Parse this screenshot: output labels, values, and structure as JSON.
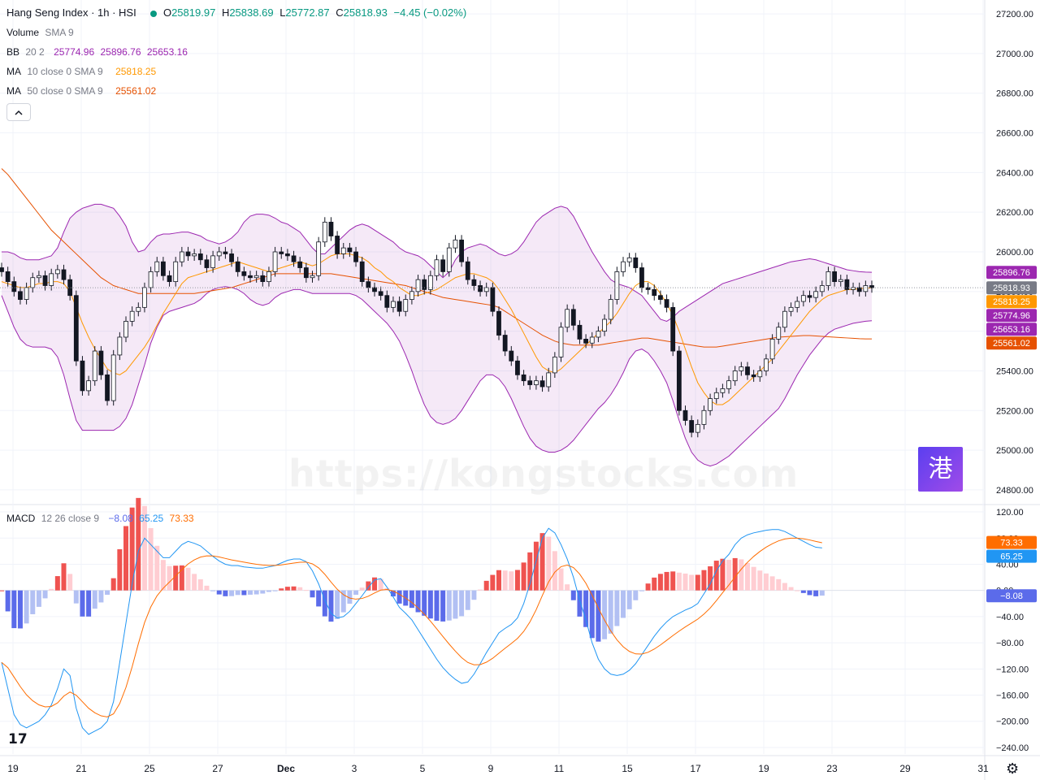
{
  "header": {
    "symbol": "Hang Seng Index · 1h · HSI",
    "o_label": "O",
    "o": "25819.97",
    "h_label": "H",
    "h": "25838.69",
    "l_label": "L",
    "l": "25772.87",
    "c_label": "C",
    "c": "25818.93",
    "change": "−4.45 (−0.02%)"
  },
  "indicators": {
    "volume": "Volume",
    "volume_params": "SMA 9",
    "bb": "BB",
    "bb_params": "20 2",
    "bb_mid": "25774.96",
    "bb_upper": "25896.76",
    "bb_lower": "25653.16",
    "ma10": "MA",
    "ma10_params": "10 close 0 SMA 9",
    "ma10_value": "25818.25",
    "ma50": "MA",
    "ma50_params": "50 close 0 SMA 9",
    "ma50_value": "25561.02",
    "macd": "MACD",
    "macd_params": "12 26 close 9",
    "macd_hist": "−8.08",
    "macd_line": "65.25",
    "macd_signal": "73.33"
  },
  "collapse_icon": "chevron-up-icon",
  "watermark": "https://kongstocks.com",
  "logo_text": "港",
  "tv_logo": "17",
  "colors": {
    "up": "#ffffff",
    "down": "#131722",
    "bb": "#9c27b0",
    "bb_fill": "rgba(156,39,176,0.1)",
    "ma10": "#ff9800",
    "ma50": "#e65100",
    "macd": "#2196f3",
    "signal": "#ff6d00",
    "hist_pos_strong": "#ef5350",
    "hist_pos_weak": "#ffcdd2",
    "hist_neg_strong": "#5b6bea",
    "hist_neg_weak": "#b2c0f3"
  },
  "chart_data": {
    "type": "candlestick",
    "price_axis": {
      "ticks": [
        27200,
        27000,
        26800,
        26600,
        26400,
        26200,
        26000,
        25800,
        25600,
        25400,
        25200,
        25000,
        24800
      ],
      "labels": [
        "27200.00",
        "27000.00",
        "26800.00",
        "26600.00",
        "26400.00",
        "26200.00",
        "26000.00",
        "25800.00",
        "25600.00",
        "25400.00",
        "25200.00",
        "25000.00",
        "24800.00"
      ],
      "ylim": [
        24730,
        27270
      ]
    },
    "macd_axis": {
      "ticks": [
        120,
        80,
        40,
        0,
        -40,
        -80,
        -120,
        -160,
        -200,
        -240
      ],
      "labels": [
        "120.00",
        "80.00",
        "40.00",
        "0.00",
        "−40.00",
        "−80.00",
        "−120.00",
        "−160.00",
        "−200.00",
        "−240.00"
      ],
      "ylim": [
        -250,
        130
      ]
    },
    "x_axis_labels": [
      "19",
      "21",
      "25",
      "27",
      "Dec",
      "3",
      "5",
      "9",
      "11",
      "15",
      "17",
      "19",
      "23",
      "29",
      "31"
    ],
    "price_badges": [
      {
        "text": "25896.76",
        "value": 25896.76,
        "color": "#9c27b0"
      },
      {
        "text": "25818.93",
        "value": 25818.93,
        "color": "#787b86"
      },
      {
        "text": "25818.25",
        "value": 25818.25,
        "color": "#ff9800"
      },
      {
        "text": "25774.96",
        "value": 25774.96,
        "color": "#9c27b0"
      },
      {
        "text": "25653.16",
        "value": 25653.16,
        "color": "#9c27b0"
      },
      {
        "text": "25561.02",
        "value": 25561.02,
        "color": "#e65100"
      }
    ],
    "macd_badges": [
      {
        "text": "73.33",
        "value": 73.33,
        "color": "#ff6d00"
      },
      {
        "text": "65.25",
        "value": 65.25,
        "color": "#2196f3"
      },
      {
        "text": "−8.08",
        "value": -8.08,
        "color": "#5b6bea"
      }
    ],
    "close": [
      25900,
      25850,
      25800,
      25760,
      25820,
      25870,
      25880,
      25830,
      25890,
      25910,
      25860,
      25780,
      25450,
      25300,
      25350,
      25500,
      25380,
      25250,
      25480,
      25570,
      25650,
      25700,
      25720,
      25820,
      25900,
      25950,
      25880,
      25850,
      25950,
      26000,
      25980,
      25990,
      25960,
      25920,
      25980,
      26000,
      25990,
      25950,
      25900,
      25880,
      25870,
      25880,
      25850,
      25900,
      26000,
      25990,
      25980,
      25950,
      25920,
      25870,
      25880,
      26050,
      26150,
      26080,
      25990,
      26020,
      26000,
      25950,
      25850,
      25820,
      25800,
      25780,
      25720,
      25750,
      25700,
      25760,
      25800,
      25860,
      25810,
      25880,
      25960,
      25900,
      26020,
      26060,
      25950,
      25860,
      25830,
      25800,
      25820,
      25700,
      25580,
      25500,
      25450,
      25380,
      25350,
      25330,
      25350,
      25320,
      25390,
      25470,
      25620,
      25710,
      25630,
      25560,
      25540,
      25570,
      25600,
      25660,
      25760,
      25900,
      25950,
      25970,
      25920,
      25820,
      25810,
      25780,
      25760,
      25720,
      25500,
      25200,
      25150,
      25090,
      25130,
      25200,
      25260,
      25290,
      25310,
      25350,
      25400,
      25420,
      25380,
      25370,
      25400,
      25460,
      25560,
      25620,
      25700,
      25720,
      25750,
      25780,
      25770,
      25800,
      25830,
      25900,
      25850,
      25860,
      25810,
      25820,
      25800,
      25830,
      25819
    ],
    "upper": [
      26000,
      26000,
      25990,
      25970,
      25960,
      25960,
      25960,
      25970,
      25980,
      26020,
      26100,
      26170,
      26200,
      26220,
      26230,
      26240,
      26240,
      26230,
      26220,
      26180,
      26130,
      26050,
      26000,
      26010,
      26050,
      26080,
      26090,
      26090,
      26095,
      26100,
      26100,
      26090,
      26080,
      26060,
      26050,
      26040,
      26050,
      26070,
      26100,
      26150,
      26180,
      26190,
      26190,
      26185,
      26170,
      26150,
      26140,
      26120,
      26100,
      26060,
      26020,
      25990,
      25990,
      26020,
      26050,
      26080,
      26110,
      26130,
      26140,
      26130,
      26110,
      26090,
      26070,
      26050,
      26020,
      26000,
      25990,
      25980,
      25960,
      25930,
      25900,
      25870,
      25900,
      25960,
      26000,
      26020,
      26030,
      26040,
      26030,
      26010,
      25990,
      25980,
      25990,
      26010,
      26050,
      26100,
      26150,
      26180,
      26200,
      26220,
      26230,
      26220,
      26180,
      26120,
      26060,
      26000,
      25950,
      25900,
      25860,
      25840,
      25830,
      25820,
      25800,
      25780,
      25740,
      25700,
      25660,
      25650,
      25670,
      25700,
      25720,
      25740,
      25760,
      25780,
      25800,
      25820,
      25840,
      25850,
      25860,
      25870,
      25880,
      25890,
      25900,
      25910,
      25920,
      25930,
      25940,
      25950,
      25955,
      25960,
      25965,
      25960,
      25950,
      25940,
      25930,
      25920,
      25910,
      25905,
      25900,
      25898,
      25897
    ],
    "lower": [
      25780,
      25700,
      25620,
      25560,
      25530,
      25520,
      25520,
      25520,
      25510,
      25470,
      25380,
      25260,
      25150,
      25100,
      25100,
      25100,
      25100,
      25100,
      25100,
      25120,
      25160,
      25230,
      25330,
      25430,
      25540,
      25620,
      25680,
      25700,
      25710,
      25720,
      25730,
      25740,
      25760,
      25790,
      25810,
      25820,
      25825,
      25820,
      25810,
      25790,
      25760,
      25740,
      25730,
      25740,
      25770,
      25790,
      25800,
      25810,
      25810,
      25800,
      25790,
      25790,
      25790,
      25790,
      25790,
      25790,
      25790,
      25780,
      25760,
      25730,
      25700,
      25670,
      25640,
      25600,
      25550,
      25480,
      25400,
      25310,
      25230,
      25170,
      25140,
      25130,
      25140,
      25160,
      25200,
      25250,
      25300,
      25350,
      25380,
      25380,
      25360,
      25320,
      25260,
      25190,
      25120,
      25060,
      25020,
      25000,
      24990,
      24990,
      25000,
      25020,
      25050,
      25090,
      25130,
      25170,
      25210,
      25240,
      25280,
      25330,
      25390,
      25460,
      25500,
      25510,
      25490,
      25450,
      25400,
      25340,
      25250,
      25150,
      25060,
      24990,
      24950,
      24930,
      24920,
      24930,
      24950,
      24970,
      25000,
      25030,
      25060,
      25090,
      25120,
      25150,
      25180,
      25210,
      25260,
      25320,
      25380,
      25430,
      25480,
      25520,
      25560,
      25590,
      25610,
      25620,
      25630,
      25640,
      25645,
      25650,
      25653
    ],
    "ma10": [
      25850,
      25840,
      25830,
      25820,
      25820,
      25830,
      25840,
      25840,
      25850,
      25850,
      25840,
      25800,
      25720,
      25640,
      25570,
      25510,
      25460,
      25410,
      25390,
      25380,
      25400,
      25440,
      25480,
      25520,
      25570,
      25630,
      25690,
      25740,
      25790,
      25840,
      25870,
      25880,
      25890,
      25900,
      25910,
      25920,
      25930,
      25940,
      25950,
      25940,
      25930,
      25920,
      25910,
      25900,
      25910,
      25920,
      25930,
      25940,
      25950,
      25940,
      25930,
      25940,
      25960,
      25980,
      25990,
      25990,
      25990,
      25980,
      25970,
      25950,
      25920,
      25900,
      25870,
      25850,
      25820,
      25800,
      25780,
      25780,
      25790,
      25800,
      25810,
      25830,
      25850,
      25870,
      25880,
      25890,
      25890,
      25880,
      25870,
      25850,
      25810,
      25760,
      25710,
      25650,
      25590,
      25530,
      25470,
      25420,
      25400,
      25390,
      25410,
      25440,
      25470,
      25500,
      25530,
      25560,
      25590,
      25620,
      25650,
      25690,
      25740,
      25790,
      25830,
      25850,
      25850,
      25830,
      25790,
      25740,
      25680,
      25600,
      25510,
      25420,
      25340,
      25290,
      25250,
      25230,
      25230,
      25250,
      25280,
      25310,
      25340,
      25370,
      25400,
      25430,
      25460,
      25500,
      25540,
      25580,
      25620,
      25660,
      25700,
      25730,
      25760,
      25780,
      25790,
      25800,
      25810,
      25810,
      25815,
      25817,
      25818
    ],
    "ma50": [
      26420,
      26390,
      26350,
      26310,
      26270,
      26230,
      26190,
      26150,
      26110,
      26080,
      26050,
      26020,
      25990,
      25960,
      25930,
      25900,
      25870,
      25850,
      25830,
      25820,
      25810,
      25800,
      25790,
      25790,
      25790,
      25790,
      25790,
      25790,
      25790,
      25790,
      25790,
      25790,
      25795,
      25800,
      25805,
      25810,
      25815,
      25820,
      25830,
      25840,
      25850,
      25860,
      25870,
      25880,
      25890,
      25890,
      25890,
      25890,
      25890,
      25890,
      25890,
      25890,
      25890,
      25890,
      25885,
      25880,
      25875,
      25870,
      25865,
      25860,
      25855,
      25850,
      25845,
      25840,
      25835,
      25830,
      25820,
      25810,
      25800,
      25790,
      25780,
      25770,
      25765,
      25760,
      25755,
      25750,
      25745,
      25740,
      25735,
      25730,
      25720,
      25700,
      25680,
      25660,
      25640,
      25620,
      25600,
      25580,
      25565,
      25550,
      25540,
      25535,
      25530,
      25530,
      25530,
      25530,
      25530,
      25535,
      25540,
      25545,
      25550,
      25555,
      25560,
      25565,
      25565,
      25560,
      25555,
      25550,
      25545,
      25540,
      25535,
      25530,
      25525,
      25520,
      25520,
      25520,
      25525,
      25530,
      25535,
      25540,
      25545,
      25550,
      25555,
      25560,
      25565,
      25570,
      25572,
      25574,
      25576,
      25578,
      25578,
      25576,
      25574,
      25572,
      25570,
      25568,
      25566,
      25564,
      25562,
      25561,
      25561
    ],
    "macd_line": [
      -110,
      -150,
      -190,
      -205,
      -210,
      -205,
      -200,
      -190,
      -175,
      -150,
      -120,
      -130,
      -180,
      -210,
      -220,
      -215,
      -210,
      -200,
      -170,
      -110,
      -50,
      10,
      60,
      80,
      70,
      60,
      50,
      50,
      60,
      70,
      75,
      72,
      68,
      60,
      52,
      45,
      40,
      38,
      38,
      36,
      35,
      34,
      34,
      36,
      38,
      42,
      46,
      48,
      48,
      44,
      30,
      10,
      -15,
      -35,
      -42,
      -40,
      -32,
      -20,
      -8,
      5,
      16,
      18,
      5,
      -10,
      -26,
      -35,
      -45,
      -60,
      -75,
      -90,
      -105,
      -118,
      -128,
      -136,
      -142,
      -140,
      -128,
      -112,
      -95,
      -80,
      -65,
      -58,
      -52,
      -42,
      -20,
      10,
      45,
      80,
      95,
      88,
      70,
      48,
      20,
      -15,
      -45,
      -80,
      -105,
      -120,
      -128,
      -130,
      -128,
      -122,
      -112,
      -98,
      -84,
      -70,
      -58,
      -48,
      -40,
      -35,
      -30,
      -26,
      -20,
      -5,
      10,
      30,
      45,
      55,
      70,
      80,
      85,
      88,
      90,
      92,
      93,
      93,
      90,
      85,
      80,
      75,
      70,
      66,
      65
    ]
  }
}
